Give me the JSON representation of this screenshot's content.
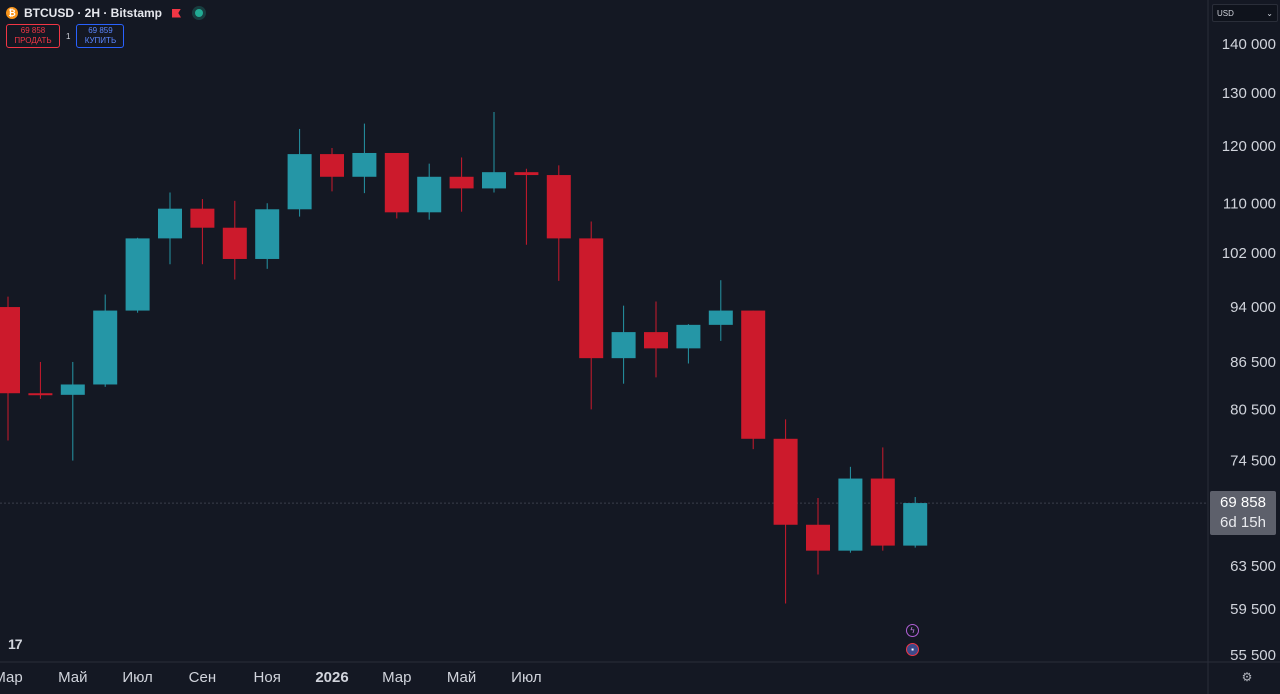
{
  "header": {
    "symbol": "BTCUSD · 2H · Bitstamp",
    "coin_icon": "bitcoin-icon",
    "flag_icon": "flag-icon",
    "status_icon": "live-dot-icon"
  },
  "trade": {
    "sell_price": "69 858",
    "sell_label": "ПРОДАТЬ",
    "spread": "1",
    "buy_price": "69 859",
    "buy_label": "КУПИТЬ"
  },
  "currency": {
    "value": "USD"
  },
  "price_tag": {
    "price": "69 858",
    "countdown": "6d 15h"
  },
  "colors": {
    "background": "#141823",
    "up": "#2596a6",
    "down": "#cc1a2c",
    "axis_text": "#d1d4dc"
  },
  "icons": {
    "logo": "tradingview-logo",
    "event_1": "lightning-icon",
    "event_2": "us-flag-icon",
    "settings": "gear-icon"
  },
  "chart_data": {
    "type": "candlestick",
    "symbol": "BTCUSD",
    "interval": "monthly bars",
    "scale": "log",
    "y_ticks": [
      140000,
      130000,
      120000,
      110000,
      102000,
      94000,
      86500,
      80500,
      74500,
      69858,
      63500,
      59500,
      55500
    ],
    "y_tick_labels": [
      "140 000",
      "130 000",
      "120 000",
      "110 000",
      "102 000",
      "94 000",
      "86 500",
      "80 500",
      "74 500",
      "69 858",
      "63 500",
      "59 500",
      "55 500"
    ],
    "x_labels": [
      "Мар",
      "Май",
      "Июл",
      "Сен",
      "Ноя",
      "2026",
      "Мар",
      "Май",
      "Июл"
    ],
    "x_label_month_index": [
      0,
      2,
      4,
      6,
      8,
      10,
      12,
      14,
      16
    ],
    "last_price": 69858,
    "candles": [
      {
        "month_index": 0,
        "open": 94000,
        "high": 95500,
        "low": 76800,
        "close": 82500
      },
      {
        "month_index": 1,
        "open": 82500,
        "high": 86500,
        "low": 81800,
        "close": 82300
      },
      {
        "month_index": 2,
        "open": 82300,
        "high": 86500,
        "low": 74500,
        "close": 83600
      },
      {
        "month_index": 3,
        "open": 83600,
        "high": 95800,
        "low": 83300,
        "close": 93500
      },
      {
        "month_index": 4,
        "open": 93500,
        "high": 104400,
        "low": 93200,
        "close": 104300
      },
      {
        "month_index": 5,
        "open": 104300,
        "high": 111800,
        "low": 100300,
        "close": 109100
      },
      {
        "month_index": 6,
        "open": 109100,
        "high": 110700,
        "low": 100300,
        "close": 106000
      },
      {
        "month_index": 7,
        "open": 106000,
        "high": 110400,
        "low": 98000,
        "close": 101100
      },
      {
        "month_index": 8,
        "open": 101100,
        "high": 110000,
        "low": 99600,
        "close": 109000
      },
      {
        "month_index": 9,
        "open": 109000,
        "high": 123100,
        "low": 107800,
        "close": 118500
      },
      {
        "month_index": 10,
        "open": 118500,
        "high": 119600,
        "low": 112000,
        "close": 114500
      },
      {
        "month_index": 11,
        "open": 114500,
        "high": 124100,
        "low": 111700,
        "close": 118700
      },
      {
        "month_index": 12,
        "open": 118700,
        "high": 118700,
        "low": 107500,
        "close": 108500
      },
      {
        "month_index": 13,
        "open": 108500,
        "high": 116800,
        "low": 107300,
        "close": 114500
      },
      {
        "month_index": 14,
        "open": 114500,
        "high": 117900,
        "low": 108600,
        "close": 112500
      },
      {
        "month_index": 15,
        "open": 112500,
        "high": 126300,
        "low": 111800,
        "close": 115300
      },
      {
        "month_index": 16,
        "open": 115300,
        "high": 115900,
        "low": 103300,
        "close": 114800
      },
      {
        "month_index": 17,
        "open": 114800,
        "high": 116500,
        "low": 97800,
        "close": 104300
      },
      {
        "month_index": 18,
        "open": 104300,
        "high": 107000,
        "low": 80500,
        "close": 87000
      },
      {
        "month_index": 19,
        "open": 87000,
        "high": 94200,
        "low": 83700,
        "close": 90500
      },
      {
        "month_index": 20,
        "open": 90500,
        "high": 94800,
        "low": 84500,
        "close": 88300
      },
      {
        "month_index": 21,
        "open": 88300,
        "high": 91600,
        "low": 86300,
        "close": 91500
      },
      {
        "month_index": 22,
        "open": 91500,
        "high": 97900,
        "low": 89300,
        "close": 93500
      },
      {
        "month_index": 23,
        "open": 93500,
        "high": 93500,
        "low": 75800,
        "close": 77000
      },
      {
        "month_index": 24,
        "open": 77000,
        "high": 79300,
        "low": 60000,
        "close": 67600
      },
      {
        "month_index": 25,
        "open": 67600,
        "high": 70400,
        "low": 62700,
        "close": 65000
      },
      {
        "month_index": 26,
        "open": 65000,
        "high": 73800,
        "low": 64800,
        "close": 72500
      },
      {
        "month_index": 27,
        "open": 72500,
        "high": 76000,
        "low": 65000,
        "close": 65500
      },
      {
        "month_index": 28,
        "open": 65500,
        "high": 70500,
        "low": 65300,
        "close": 69858
      }
    ]
  }
}
